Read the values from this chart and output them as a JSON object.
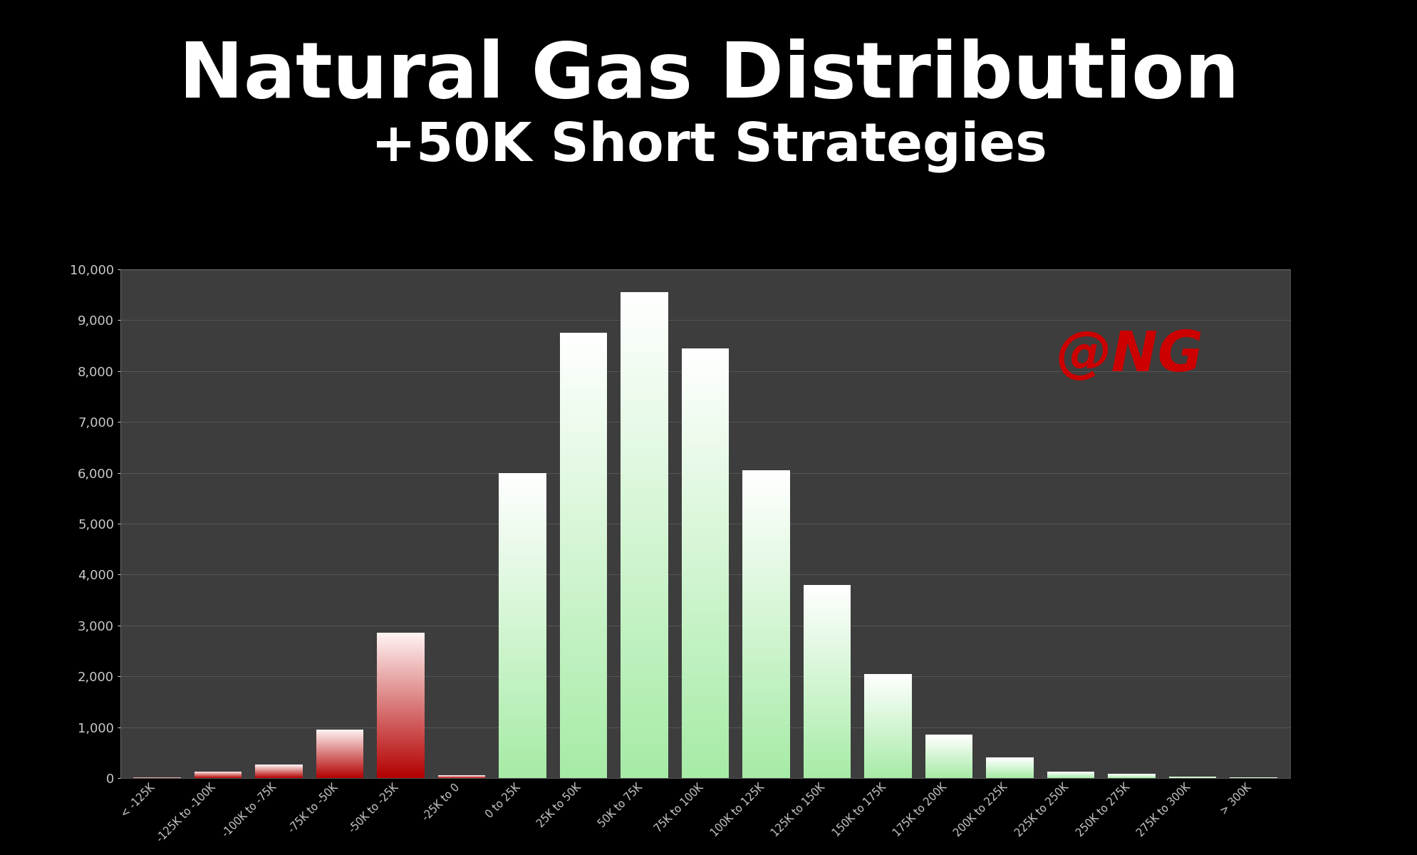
{
  "categories": [
    "< -125K",
    "-125K to\n-100K",
    "-100K to\n-75K",
    "-75K to\n-50K",
    "-50K to\n-25K",
    "-25K to 0",
    "0 to 25K",
    "25K to 50K",
    "50K to 75K",
    "75K to 100K",
    "100K to\n125K",
    "125K to\n150K",
    "150K to\n175K",
    "175K to\n200K",
    "200K to\n225K",
    "225K to\n250K",
    "250K to\n275K",
    "275K to\n300K",
    "> 300K"
  ],
  "values": [
    10,
    130,
    260,
    950,
    2850,
    50,
    6000,
    8750,
    9550,
    8450,
    6050,
    3800,
    2050,
    850,
    400,
    130,
    80,
    30,
    10
  ],
  "neg_indices": [
    0,
    1,
    2,
    3,
    4,
    5
  ],
  "pos_indices": [
    6,
    7,
    8,
    9,
    10,
    11,
    12,
    13,
    14,
    15,
    16,
    17,
    18
  ],
  "title_line1": "Natural Gas Distribution",
  "title_line2": "+50K Short Strategies",
  "annotation": "@NG",
  "annotation_color": "#cc0000",
  "bg_color": "#000000",
  "chart_bg_color": "#3d3d3d",
  "grid_color": "#666666",
  "text_color": "#ffffff",
  "tick_label_color": "#cccccc",
  "ylim": [
    0,
    10000
  ],
  "yticks": [
    0,
    1000,
    2000,
    3000,
    4000,
    5000,
    6000,
    7000,
    8000,
    9000,
    10000
  ]
}
